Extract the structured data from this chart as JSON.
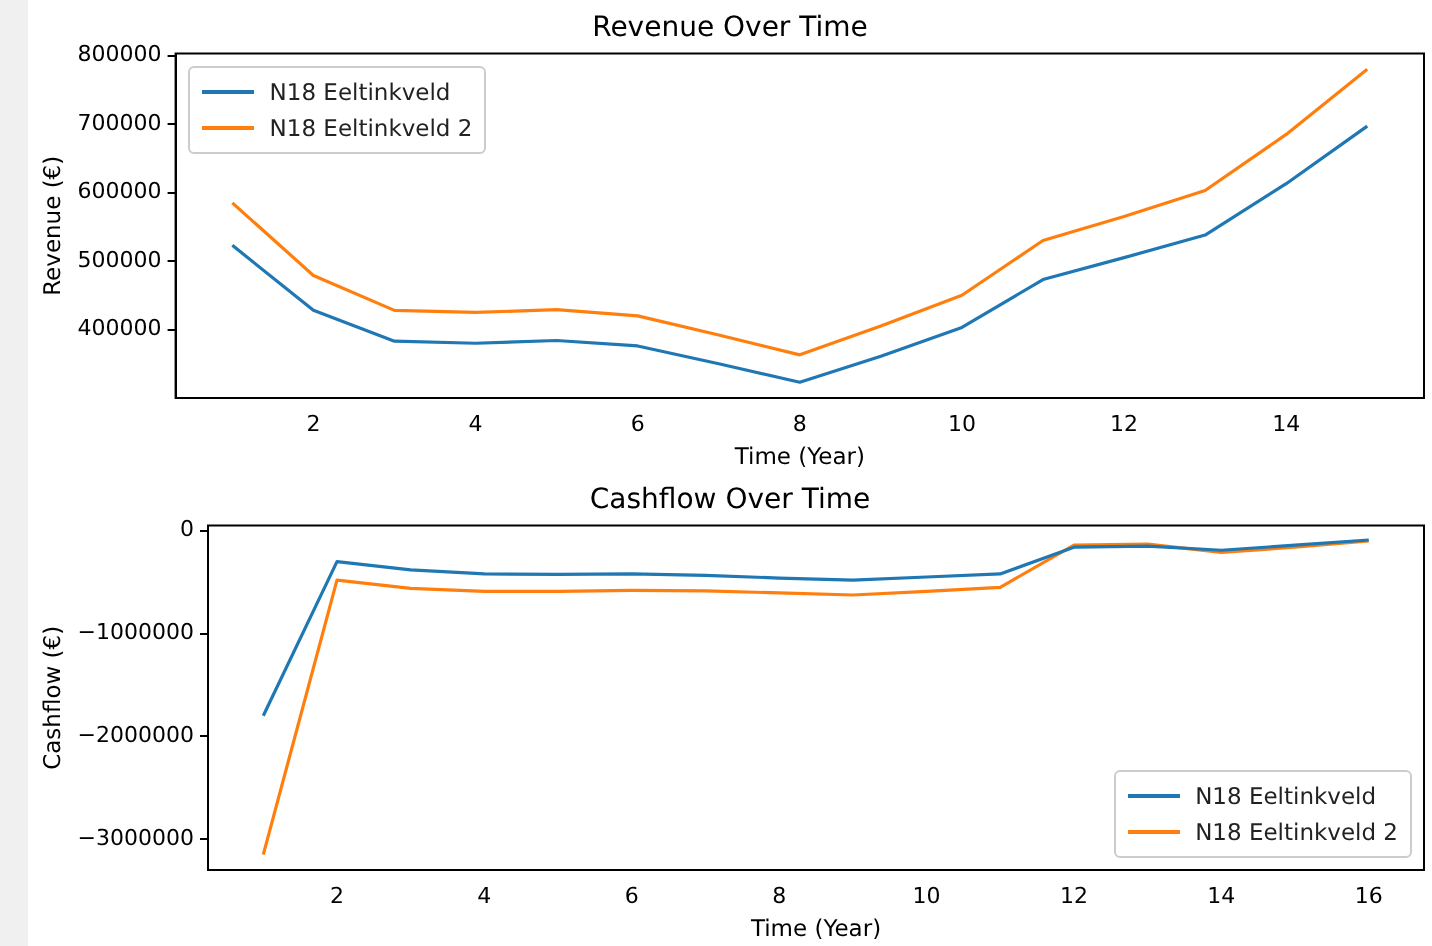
{
  "chart_data": [
    {
      "type": "line",
      "title": "Revenue Over Time",
      "xlabel": "Time (Year)",
      "ylabel": "Revenue (€)",
      "x": [
        1,
        2,
        3,
        4,
        5,
        6,
        7,
        8,
        9,
        10,
        11,
        12,
        13,
        14,
        15
      ],
      "xlim": [
        0.3,
        15.7
      ],
      "xticks": [
        2,
        4,
        6,
        8,
        10,
        12,
        14
      ],
      "ylim": [
        300000,
        803000
      ],
      "yticks": [
        400000,
        500000,
        600000,
        700000,
        800000
      ],
      "grid": false,
      "legend": "top left",
      "marker": "none",
      "line_style": "solid",
      "series": [
        {
          "name": "N18 Eeltinkveld",
          "color": "#1f77b4",
          "values": [
            523000,
            428000,
            383000,
            380000,
            384000,
            376000,
            350000,
            323000,
            361000,
            403000,
            473000,
            505000,
            538000,
            613000,
            697000
          ]
        },
        {
          "name": "N18 Eeltinkveld 2",
          "color": "#ff7f0e",
          "values": [
            585000,
            479000,
            428000,
            425000,
            429000,
            420000,
            392000,
            363000,
            405000,
            450000,
            530000,
            565000,
            603000,
            685000,
            780000
          ]
        }
      ]
    },
    {
      "type": "line",
      "title": "Cashflow Over Time",
      "xlabel": "Time (Year)",
      "ylabel": "Cashflow (€)",
      "x": [
        1,
        2,
        3,
        4,
        5,
        6,
        7,
        8,
        9,
        10,
        11,
        12,
        13,
        14,
        15,
        16
      ],
      "xlim": [
        0.25,
        16.75
      ],
      "xticks": [
        2,
        4,
        6,
        8,
        10,
        12,
        14,
        16
      ],
      "ylim": [
        -3300000,
        50000
      ],
      "yticks": [
        -3000000,
        -2000000,
        -1000000,
        0
      ],
      "grid": false,
      "legend": "bottom right",
      "marker": "none",
      "line_style": "solid",
      "series": [
        {
          "name": "N18 Eeltinkveld",
          "color": "#1f77b4",
          "values": [
            -1800000,
            -300000,
            -380000,
            -420000,
            -425000,
            -420000,
            -435000,
            -460000,
            -480000,
            -450000,
            -420000,
            -160000,
            -150000,
            -190000,
            -140000,
            -90000
          ]
        },
        {
          "name": "N18 Eeltinkveld 2",
          "color": "#ff7f0e",
          "values": [
            -3150000,
            -480000,
            -560000,
            -590000,
            -590000,
            -580000,
            -585000,
            -605000,
            -625000,
            -590000,
            -550000,
            -140000,
            -130000,
            -210000,
            -160000,
            -100000
          ]
        }
      ]
    }
  ]
}
